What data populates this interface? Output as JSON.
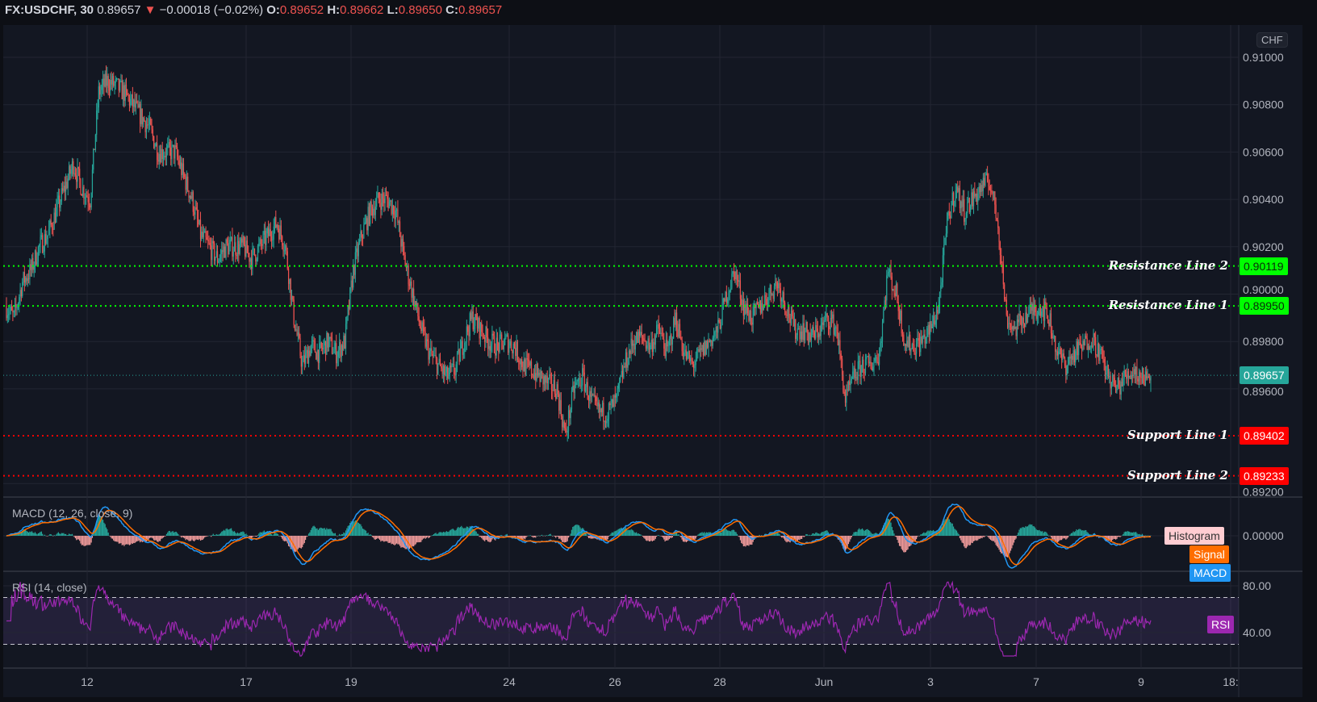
{
  "header": {
    "symbol": "FX:USDCHF, 30",
    "last": "0.89657",
    "change": "−0.00018 (−0.02%)",
    "o_label": "O:",
    "o": "0.89652",
    "h_label": "H:",
    "h": "0.89662",
    "l_label": "L:",
    "l": "0.89650",
    "c_label": "C:",
    "c": "0.89657",
    "direction_icon": "triangle-down-icon"
  },
  "currency_button": "CHF",
  "colors": {
    "background": "#131722",
    "grid": "#232632",
    "up": "#26a69a",
    "down": "#ef5350",
    "resistance": "#00ff00",
    "support": "#ff0000",
    "macd": "#2196f3",
    "signal": "#ff6d00",
    "histogram_label": "#ffcdd2",
    "rsi": "#9c27b0",
    "current_price": "#26a69a"
  },
  "chart_data": {
    "type": "candlestick",
    "x_range": [
      "May 11",
      "Jun 9"
    ],
    "x_ticks": [
      "12",
      "17",
      "19",
      "24",
      "26",
      "28",
      "Jun",
      "3",
      "7",
      "9",
      "18:"
    ],
    "y_ticks": [
      "0.91000",
      "0.90800",
      "0.90600",
      "0.90400",
      "0.90200",
      "0.90000",
      "0.89800",
      "0.89600",
      "0.89200"
    ],
    "ylim": [
      0.8915,
      0.9115
    ],
    "grid": true,
    "closes": [
      0.8995,
      0.899,
      0.9005,
      0.901,
      0.902,
      0.9025,
      0.9035,
      0.9045,
      0.9055,
      0.9045,
      0.904,
      0.9085,
      0.909,
      0.9088,
      0.9085,
      0.908,
      0.9075,
      0.907,
      0.906,
      0.906,
      0.906,
      0.905,
      0.904,
      0.9025,
      0.902,
      0.9015,
      0.902,
      0.902,
      0.902,
      0.9015,
      0.902,
      0.9025,
      0.903,
      0.902,
      0.899,
      0.897,
      0.8978,
      0.8975,
      0.898,
      0.8975,
      0.898,
      0.901,
      0.9025,
      0.9035,
      0.904,
      0.904,
      0.9035,
      0.9015,
      0.9,
      0.8985,
      0.8975,
      0.897,
      0.8965,
      0.8968,
      0.898,
      0.899,
      0.8985,
      0.898,
      0.8978,
      0.898,
      0.8978,
      0.897,
      0.8968,
      0.8965,
      0.8962,
      0.896,
      0.894,
      0.896,
      0.8965,
      0.8955,
      0.895,
      0.895,
      0.8955,
      0.897,
      0.898,
      0.8982,
      0.8978,
      0.8985,
      0.8975,
      0.899,
      0.8975,
      0.897,
      0.8975,
      0.898,
      0.8985,
      0.9,
      0.901,
      0.8995,
      0.899,
      0.8995,
      0.9,
      0.9005,
      0.8995,
      0.8985,
      0.8985,
      0.8982,
      0.8985,
      0.899,
      0.8985,
      0.8955,
      0.8965,
      0.897,
      0.897,
      0.8975,
      0.901,
      0.9,
      0.898,
      0.8978,
      0.898,
      0.8985,
      0.8995,
      0.903,
      0.9045,
      0.9035,
      0.904,
      0.9045,
      0.9048,
      0.903,
      0.899,
      0.8985,
      0.899,
      0.8993,
      0.8995,
      0.899,
      0.8975,
      0.897,
      0.8975,
      0.8978,
      0.8982,
      0.8975,
      0.8965,
      0.896,
      0.8965,
      0.8968,
      0.8965,
      0.89657
    ],
    "current_price": "0.89657",
    "horizontal_lines": [
      {
        "label": "Resistance Line 2",
        "value": "0.90119",
        "kind": "resistance"
      },
      {
        "label": "Resistance Line 1",
        "value": "0.89950",
        "kind": "resistance"
      },
      {
        "label": "Support Line 1",
        "value": "0.89402",
        "kind": "support"
      },
      {
        "label": "Support Line 2",
        "value": "0.89233",
        "kind": "support"
      }
    ],
    "macd": {
      "title": "MACD (12, 26, close, 9)",
      "fast": 12,
      "slow": 26,
      "signal": 9,
      "y_tick": "0.00000",
      "labels": [
        "Histogram",
        "Signal",
        "MACD"
      ]
    },
    "rsi": {
      "title": "RSI (14, close)",
      "period": 14,
      "y_ticks": [
        "80.00",
        "40.00"
      ],
      "bands": [
        70,
        30
      ],
      "label": "RSI"
    }
  }
}
